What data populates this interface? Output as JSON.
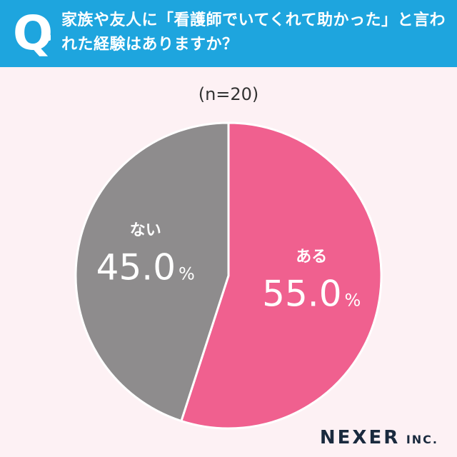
{
  "header": {
    "q_label": "Q",
    "question": "家族や友人に「看護師でいてくれて助かった」と言われた経験はありますか？"
  },
  "note": "(n=20)",
  "chart_data": {
    "type": "pie",
    "title": "家族や友人に「看護師でいてくれて助かった」と言われた経験はありますか？",
    "n": "(n=20)",
    "slices": [
      {
        "label": "ある",
        "value": 55.0,
        "value_text": "55.0",
        "unit": "%",
        "color": "#f0608f"
      },
      {
        "label": "ない",
        "value": 45.0,
        "value_text": "45.0",
        "unit": "%",
        "color": "#8e8c8d"
      }
    ],
    "start": "top",
    "direction": "clockwise",
    "separator_color": "#ffffff"
  },
  "logo": {
    "main": "NEXER",
    "sub": "INC."
  }
}
